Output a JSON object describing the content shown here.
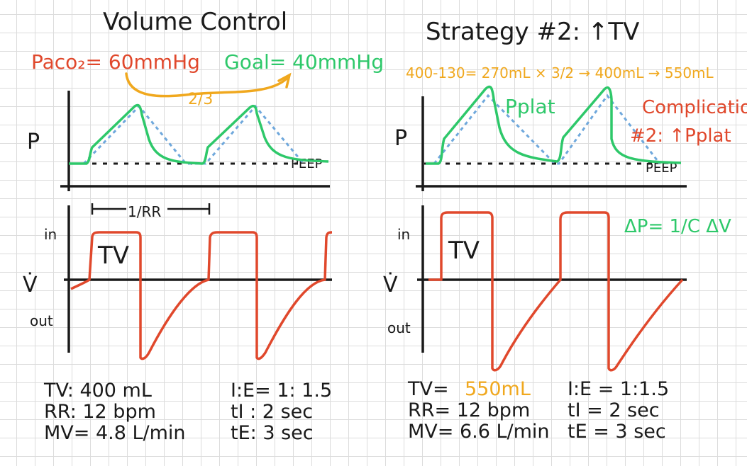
{
  "colors": {
    "ink": "#1a1a1a",
    "pressure_curve": "#2ec86a",
    "dotted_curve": "#6fa8dc",
    "flow_curve": "#e0482c",
    "orange": "#f0a81e",
    "red_note": "#e0482c",
    "green_note": "#2ec86a"
  },
  "left": {
    "title": "Volume Control",
    "paco2_label": "Paco₂= 60mmHg",
    "goal_label": "Goal= 40mmHg",
    "fraction_label": "2/3",
    "p_axis": "P",
    "peep_label": "PEEP",
    "rr_interval_label": "1/RR",
    "flow_axis": "V̇",
    "in_label": "in",
    "out_label": "out",
    "tv_box_label": "TV",
    "params": {
      "tv": "TV: 400 mL",
      "rr": "RR:  12 bpm",
      "mv": "MV= 4.8 L/min",
      "ie": "I:E= 1: 1.5",
      "ti": "tI : 2 sec",
      "te": "tE: 3 sec"
    }
  },
  "right": {
    "title": "Strategy #2:  ↑TV",
    "calc_label": "400-130= 270mL × 3/2 → 400mL → 550mL",
    "pplat_label": "Pplat",
    "complication_line1": "Complication",
    "complication_line2": "#2: ↑Pplat",
    "equation_label": "ΔP= 1/C ΔV",
    "p_axis": "P",
    "peep_label": "PEEP",
    "flow_axis": "V̇",
    "in_label": "in",
    "out_label": "out",
    "tv_box_label": "TV",
    "params": {
      "tv_prefix": "TV=",
      "tv_value": "550mL",
      "rr": "RR=    12 bpm",
      "mv": "MV= 6.6 L/min",
      "ie": "I:E = 1:1.5",
      "ti": "tI  =  2 sec",
      "te": "tE  =  3 sec"
    }
  }
}
